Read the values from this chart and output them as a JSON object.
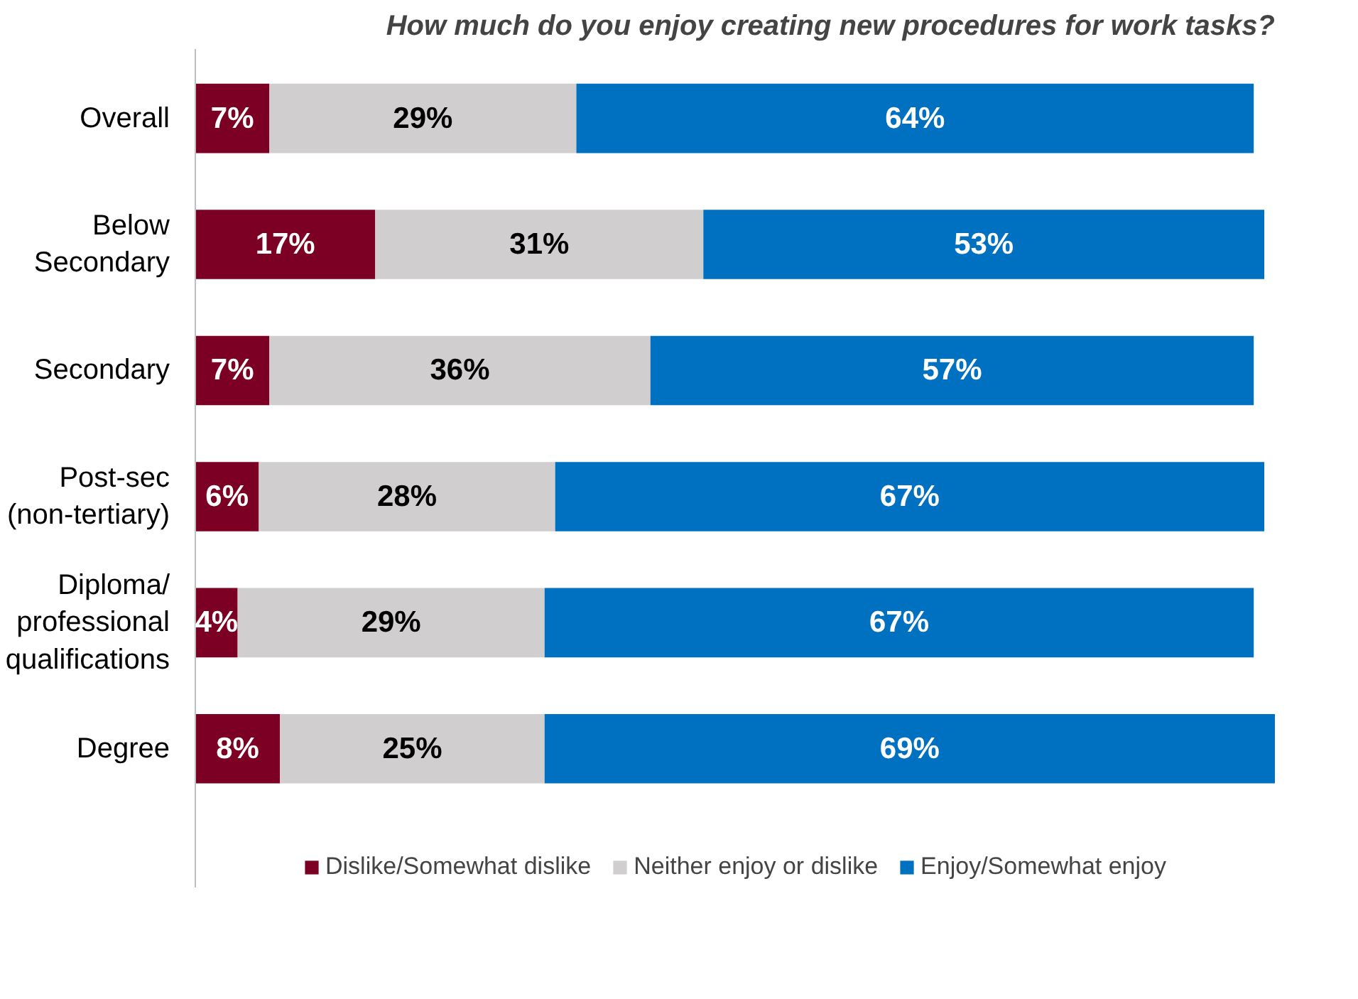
{
  "chart_data": {
    "type": "bar",
    "orientation": "horizontal",
    "stacked": true,
    "title": "How much do you enjoy creating new procedures for work tasks?",
    "categories": [
      "Overall",
      "Below Secondary",
      "Secondary",
      "Post-sec (non-tertiary)",
      "Diploma/ professional qualifications",
      "Degree"
    ],
    "series": [
      {
        "name": "Dislike/Somewhat dislike",
        "color": "#7b0023",
        "values": [
          7,
          17,
          7,
          6,
          4,
          8
        ],
        "value_labels": [
          "7%",
          "17%",
          "7%",
          "6%",
          "4%",
          "8%"
        ]
      },
      {
        "name": "Neither enjoy or dislike",
        "color": "#d0cece",
        "values": [
          29,
          31,
          36,
          28,
          29,
          25
        ],
        "value_labels": [
          "29%",
          "31%",
          "36%",
          "28%",
          "29%",
          "25%"
        ]
      },
      {
        "name": "Enjoy/Somewhat enjoy",
        "color": "#0070c0",
        "values": [
          64,
          53,
          57,
          67,
          67,
          69
        ],
        "value_labels": [
          "64%",
          "53%",
          "57%",
          "67%",
          "67%",
          "69%"
        ]
      }
    ],
    "grid": false,
    "legend": "bottom",
    "tick_labels": "y"
  }
}
